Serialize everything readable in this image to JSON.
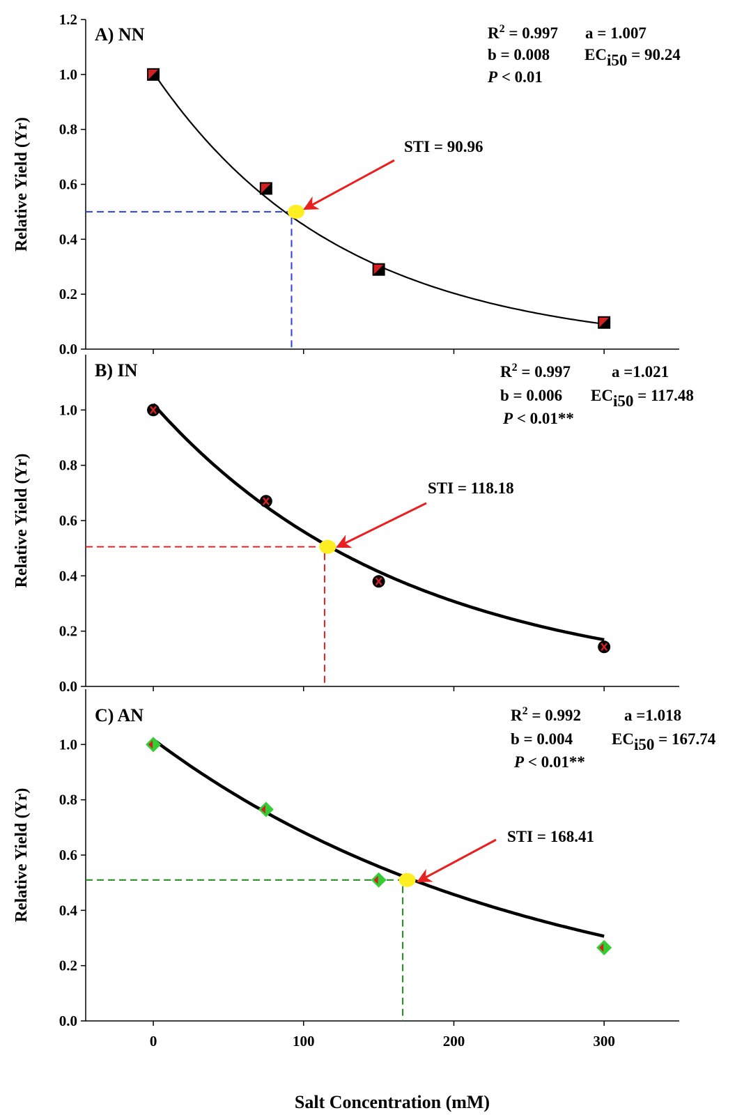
{
  "figure": {
    "x_axis_label": "Salt Concentration (mM)",
    "y_axis_label": "Relative Yield (Yr)"
  },
  "chart_data": [
    {
      "type": "scatter",
      "panel": "A",
      "title": "A) NN",
      "xlabel": "",
      "ylabel": "Relative Yield (Yr)",
      "xlim": [
        -45,
        350
      ],
      "ylim": [
        0,
        1.2
      ],
      "x_ticks": [
        "0",
        "100",
        "200",
        "300"
      ],
      "y_ticks": [
        "0.0",
        "0.2",
        "0.4",
        "0.6",
        "0.8",
        "1.0",
        "1.2"
      ],
      "x": [
        0,
        75,
        150,
        300
      ],
      "values": [
        1.0,
        0.585,
        0.29,
        0.097
      ],
      "marker": "square",
      "marker_colors": [
        "#d32020",
        "#000000"
      ],
      "guide_color": "#2f3fdf",
      "fit": {
        "model": "exponential",
        "a": 1.007,
        "b": 0.008,
        "x_start": 0
      },
      "sti_point": {
        "x": 95,
        "y": 0.5
      },
      "guide_x": 92,
      "stats": {
        "r2_label": "R",
        "r2_sup": "2",
        "r2_value": " = 0.997",
        "a_text": "a = 1.007",
        "b_text": "b = 0.008",
        "ec_label": "EC",
        "ec_sub": "i50",
        "ec_value": " = 90.24",
        "p_symbol": "P",
        "p_value": " < 0.01"
      },
      "sti_label": "STI = 90.96"
    },
    {
      "type": "scatter",
      "panel": "B",
      "title": "B) IN",
      "xlabel": "",
      "ylabel": "Relative Yield (Yr)",
      "xlim": [
        -45,
        350
      ],
      "ylim": [
        0,
        1.2
      ],
      "x_ticks": [
        "0",
        "100",
        "200",
        "300"
      ],
      "y_ticks": [
        "0.0",
        "0.2",
        "0.4",
        "0.6",
        "0.8",
        "1.0"
      ],
      "x": [
        0,
        75,
        150,
        300
      ],
      "values": [
        1.0,
        0.67,
        0.38,
        0.143
      ],
      "marker": "circle",
      "marker_colors": [
        "#000000",
        "#d32020"
      ],
      "guide_color": "#e82020",
      "fit": {
        "model": "exponential",
        "a": 1.021,
        "b": 0.006,
        "x_start": 0
      },
      "sti_point": {
        "x": 116,
        "y": 0.505
      },
      "guide_x": 114,
      "stats": {
        "r2_label": "R",
        "r2_sup": "2",
        "r2_value": " =  0.997",
        "a_text": "a =1.021",
        "b_text": "b = 0.006",
        "ec_label": "EC",
        "ec_sub": "i50",
        "ec_value": " = 117.48",
        "p_symbol": "P",
        "p_value": " < 0.01**"
      },
      "sti_label": "STI = 118.18"
    },
    {
      "type": "scatter",
      "panel": "C",
      "title": "C) AN",
      "xlabel": "Salt Concentration (mM)",
      "ylabel": "Relative Yield (Yr)",
      "xlim": [
        -45,
        350
      ],
      "ylim": [
        0,
        1.2
      ],
      "x_ticks": [
        "0",
        "100",
        "200",
        "300"
      ],
      "y_ticks": [
        "0.0",
        "0.2",
        "0.4",
        "0.6",
        "0.8",
        "1.0"
      ],
      "x": [
        0,
        75,
        150,
        300
      ],
      "values": [
        1.0,
        0.765,
        0.51,
        0.265
      ],
      "marker": "diamond",
      "marker_colors": [
        "#33cc33",
        "#d32020"
      ],
      "guide_color": "#1a8a1a",
      "fit": {
        "model": "exponential",
        "a": 1.018,
        "b": 0.004,
        "x_start": 0
      },
      "sti_point": {
        "x": 169,
        "y": 0.51
      },
      "guide_x": 166,
      "stats": {
        "r2_label": "R",
        "r2_sup": "2",
        "r2_value": " =  0.992",
        "a_text": "a =1.018",
        "b_text": "b = 0.004",
        "ec_label": "EC",
        "ec_sub": "i50",
        "ec_value": " = 167.74",
        "p_symbol": "P",
        "p_value": " < 0.01**"
      },
      "sti_label": "STI = 168.41"
    }
  ]
}
